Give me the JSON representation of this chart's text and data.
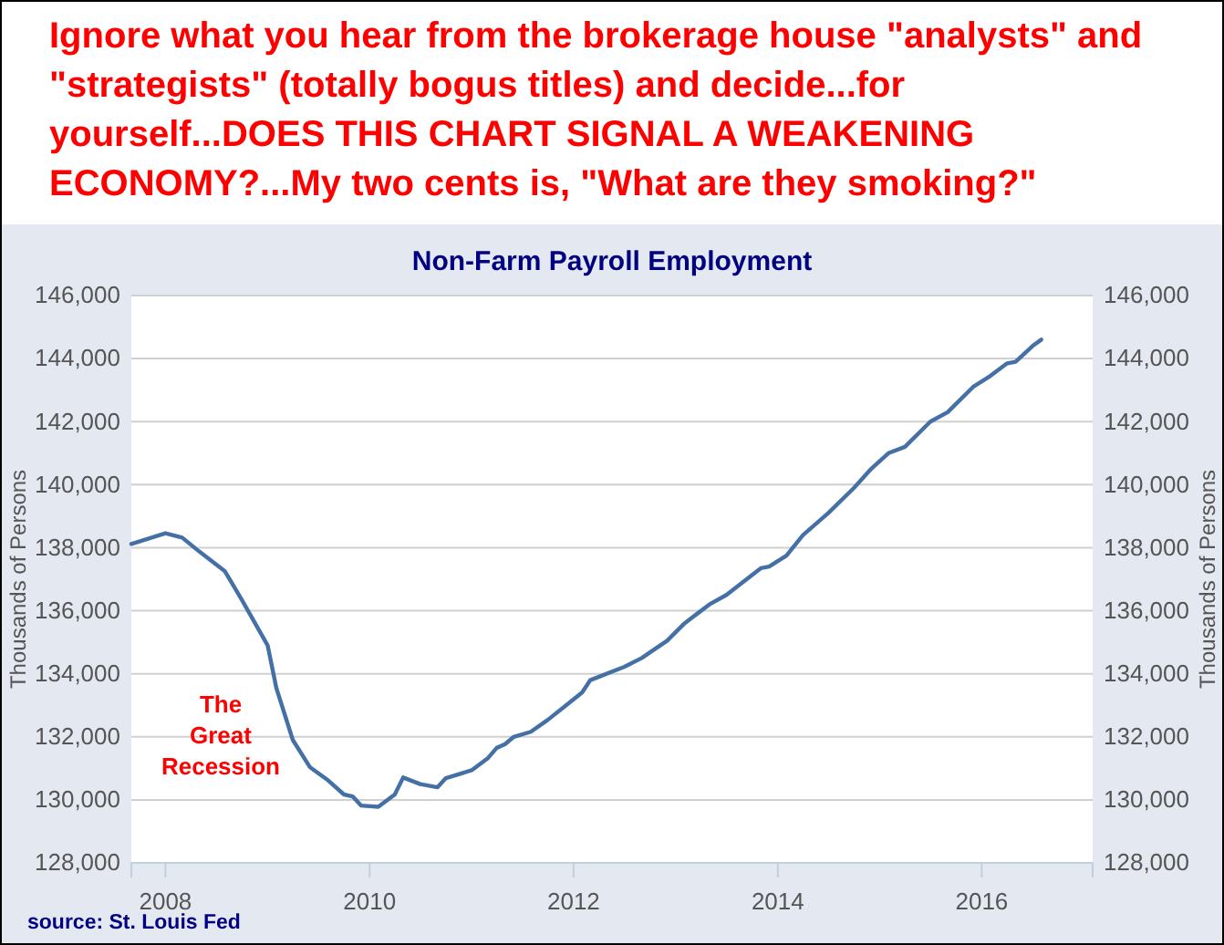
{
  "chart_data": {
    "type": "line",
    "title": "Non-Farm Payroll Employment",
    "ylabel": "Thousands of Persons",
    "y2label": "Thousands of Persons",
    "annotations": [
      "Ignore what you hear from the brokerage house \"analysts\" and \"strategists\" (totally bogus titles) and decide...for yourself...DOES THIS CHART SIGNAL A WEAKENING ECONOMY?...My two cents is, \"What are they smoking?\"",
      "The Great Recession",
      "source: St. Louis Fed"
    ],
    "x": [
      "2007-09",
      "2008-01",
      "2008-03",
      "2008-05",
      "2008-08",
      "2008-10",
      "2009-01",
      "2009-02",
      "2009-04",
      "2009-06",
      "2009-08",
      "2009-10",
      "2009-11",
      "2009-12",
      "2010-02",
      "2010-04",
      "2010-05",
      "2010-07",
      "2010-09",
      "2010-10",
      "2011-01",
      "2011-03",
      "2011-04",
      "2011-05",
      "2011-06",
      "2011-08",
      "2011-10",
      "2011-12",
      "2012-02",
      "2012-03",
      "2012-07",
      "2012-09",
      "2012-12",
      "2013-02",
      "2013-05",
      "2013-07",
      "2013-11",
      "2013-12",
      "2014-02",
      "2014-04",
      "2014-07",
      "2014-10",
      "2014-12",
      "2015-02",
      "2015-04",
      "2015-07",
      "2015-09",
      "2015-12",
      "2016-02",
      "2016-04",
      "2016-05",
      "2016-07",
      "2016-08"
    ],
    "series": [
      {
        "color": "#4470a6",
        "values": [
          138120,
          138460,
          138320,
          137880,
          137250,
          136340,
          134900,
          133550,
          131900,
          131040,
          130650,
          130170,
          130110,
          129820,
          129780,
          130170,
          130710,
          130500,
          130400,
          130690,
          130940,
          131330,
          131650,
          131770,
          132000,
          132160,
          132540,
          132970,
          133410,
          133800,
          134220,
          134500,
          135050,
          135600,
          136200,
          136500,
          137350,
          137400,
          137750,
          138400,
          139100,
          139900,
          140500,
          141000,
          141200,
          142000,
          142300,
          143100,
          143450,
          143850,
          143900,
          144400,
          144600
        ]
      }
    ],
    "xlim": [
      "2007-09",
      "2017-02"
    ],
    "xticks": [
      {
        "value": "2008",
        "label": "2008"
      },
      {
        "value": "2010",
        "label": "2010"
      },
      {
        "value": "2012",
        "label": "2012"
      },
      {
        "value": "2014",
        "label": "2014"
      },
      {
        "value": "2016",
        "label": "2016"
      }
    ],
    "ylim": [
      128000,
      146000
    ],
    "yticks": [
      {
        "value": 128000,
        "label": "128,000"
      },
      {
        "value": 130000,
        "label": "130,000"
      },
      {
        "value": 132000,
        "label": "132,000"
      },
      {
        "value": 134000,
        "label": "134,000"
      },
      {
        "value": 136000,
        "label": "136,000"
      },
      {
        "value": 138000,
        "label": "138,000"
      },
      {
        "value": 140000,
        "label": "140,000"
      },
      {
        "value": 142000,
        "label": "142,000"
      },
      {
        "value": 144000,
        "label": "144,000"
      },
      {
        "value": 146000,
        "label": "146,000"
      }
    ],
    "y2lim": [
      128000,
      146000
    ],
    "y2ticks": [
      {
        "value": 128000,
        "label": "128,000"
      },
      {
        "value": 130000,
        "label": "130,000"
      },
      {
        "value": 132000,
        "label": "132,000"
      },
      {
        "value": 134000,
        "label": "134,000"
      },
      {
        "value": 136000,
        "label": "136,000"
      },
      {
        "value": 138000,
        "label": "138,000"
      },
      {
        "value": 140000,
        "label": "140,000"
      },
      {
        "value": 142000,
        "label": "142,000"
      },
      {
        "value": 144000,
        "label": "144,000"
      },
      {
        "value": 146000,
        "label": "146,000"
      }
    ],
    "grid": "y",
    "marker": "none",
    "line_style": "solid"
  }
}
